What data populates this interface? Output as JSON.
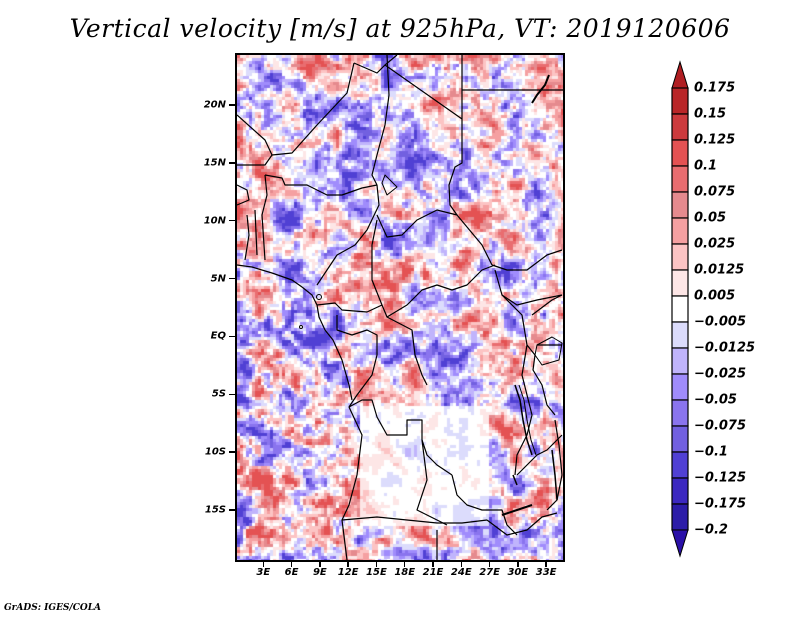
{
  "title": "Vertical velocity [m/s] at 925hPa, VT: 2019120606",
  "footer": "GrADS: IGES/COLA",
  "map": {
    "variable": "Vertical velocity",
    "units": "m/s",
    "level": "925hPa",
    "valid_time": "2019120606",
    "lon_range": [
      0,
      35
    ],
    "lat_range": [
      -19.5,
      24.5
    ],
    "y_ticks": [
      {
        "label": "20N",
        "lat": 20
      },
      {
        "label": "15N",
        "lat": 15
      },
      {
        "label": "10N",
        "lat": 10
      },
      {
        "label": "5N",
        "lat": 5
      },
      {
        "label": "EQ",
        "lat": 0
      },
      {
        "label": "5S",
        "lat": -5
      },
      {
        "label": "10S",
        "lat": -10
      },
      {
        "label": "15S",
        "lat": -15
      }
    ],
    "x_ticks": [
      {
        "label": "3E",
        "lon": 3
      },
      {
        "label": "6E",
        "lon": 6
      },
      {
        "label": "9E",
        "lon": 9
      },
      {
        "label": "12E",
        "lon": 12
      },
      {
        "label": "15E",
        "lon": 15
      },
      {
        "label": "18E",
        "lon": 18
      },
      {
        "label": "21E",
        "lon": 21
      },
      {
        "label": "24E",
        "lon": 24
      },
      {
        "label": "27E",
        "lon": 27
      },
      {
        "label": "30E",
        "lon": 30
      },
      {
        "label": "33E",
        "lon": 33
      }
    ]
  },
  "colorbar": {
    "labels": [
      "0.175",
      "0.15",
      "0.125",
      "0.1",
      "0.075",
      "0.05",
      "0.025",
      "0.0125",
      "0.005",
      "-0.005",
      "-0.0125",
      "-0.025",
      "-0.05",
      "-0.075",
      "-0.1",
      "-0.125",
      "-0.175",
      "-0.2"
    ],
    "top_arrow_color": "#b01e22",
    "bottom_arrow_color": "#2a10a8",
    "colors": [
      "#b92628",
      "#cc3a3d",
      "#e45253",
      "#e96d70",
      "#e58a8e",
      "#f5a0a1",
      "#fcc4c4",
      "#fde6e6",
      "#ffffff",
      "#dcdcfc",
      "#c0b4fc",
      "#a08cfc",
      "#8a74ee",
      "#7260e0",
      "#5040d4",
      "#3c28c0",
      "#2c1ca8"
    ]
  }
}
